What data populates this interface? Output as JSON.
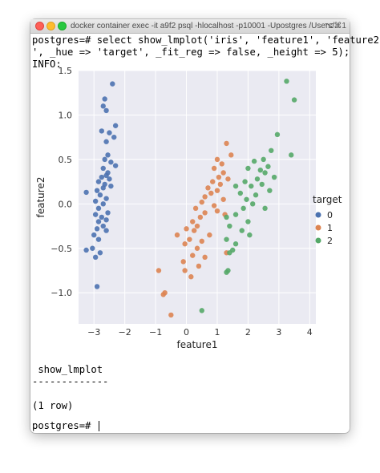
{
  "window": {
    "title": "docker container exec -it a9f2 psql -hlocalhost -p10001 -Upostgres /Users/...",
    "shortcut": "⌥⌘1"
  },
  "terminal": {
    "command_line_1": "postgres=# select show_lmplot('iris', 'feature1', 'feature2",
    "command_line_2": "', _hue => 'target', _fit_reg => false, _height => 5);",
    "info_line": "INFO:",
    "result_header": " show_lmplot",
    "result_separator": "-------------",
    "blank": "",
    "row_count": "(1 row)",
    "prompt": "postgres=# "
  },
  "colors": {
    "axes_background": "#eaeaf2",
    "grid": "#ffffff",
    "series0": "#4c72b0",
    "series1": "#dd8452",
    "series2": "#55a868"
  },
  "chart_data": {
    "type": "scatter",
    "xlabel": "feature1",
    "ylabel": "feature2",
    "xlim": [
      -3.5,
      4.2
    ],
    "ylim": [
      -1.35,
      1.5
    ],
    "xticks": [
      -3,
      -2,
      -1,
      0,
      1,
      2,
      3,
      4
    ],
    "yticks": [
      -1.0,
      -0.5,
      0.0,
      0.5,
      1.0,
      1.5
    ],
    "xtick_labels": [
      "−3",
      "−2",
      "−1",
      "0",
      "1",
      "2",
      "3",
      "4"
    ],
    "ytick_labels": [
      "−1.0",
      "−0.5",
      "0.0",
      "0.5",
      "1.0",
      "1.5"
    ],
    "grid": true,
    "legend": {
      "title": "target",
      "placement": "right",
      "labels": [
        "0",
        "1",
        "2"
      ]
    },
    "series": [
      {
        "name": "0",
        "points": [
          [
            -2.4,
            1.35
          ],
          [
            -2.65,
            1.18
          ],
          [
            -2.7,
            1.1
          ],
          [
            -2.6,
            1.05
          ],
          [
            -2.3,
            0.88
          ],
          [
            -2.75,
            0.82
          ],
          [
            -2.5,
            0.8
          ],
          [
            -2.35,
            0.75
          ],
          [
            -2.6,
            0.7
          ],
          [
            -2.55,
            0.55
          ],
          [
            -2.65,
            0.5
          ],
          [
            -2.45,
            0.47
          ],
          [
            -2.3,
            0.43
          ],
          [
            -2.7,
            0.4
          ],
          [
            -2.55,
            0.35
          ],
          [
            -2.6,
            0.32
          ],
          [
            -2.75,
            0.3
          ],
          [
            -2.5,
            0.28
          ],
          [
            -2.85,
            0.25
          ],
          [
            -2.65,
            0.22
          ],
          [
            -2.45,
            0.2
          ],
          [
            -2.7,
            0.18
          ],
          [
            -2.9,
            0.15
          ],
          [
            -3.25,
            0.13
          ],
          [
            -2.8,
            0.1
          ],
          [
            -2.6,
            0.06
          ],
          [
            -2.95,
            0.03
          ],
          [
            -2.7,
            0.0
          ],
          [
            -2.85,
            -0.05
          ],
          [
            -2.55,
            -0.1
          ],
          [
            -2.95,
            -0.12
          ],
          [
            -2.75,
            -0.15
          ],
          [
            -2.6,
            -0.18
          ],
          [
            -2.85,
            -0.2
          ],
          [
            -2.7,
            -0.25
          ],
          [
            -2.9,
            -0.28
          ],
          [
            -2.6,
            -0.3
          ],
          [
            -3.0,
            -0.35
          ],
          [
            -2.85,
            -0.4
          ],
          [
            -3.05,
            -0.5
          ],
          [
            -3.25,
            -0.52
          ],
          [
            -2.8,
            -0.55
          ],
          [
            -2.95,
            -0.6
          ],
          [
            -2.9,
            -0.93
          ]
        ]
      },
      {
        "name": "1",
        "points": [
          [
            1.3,
            0.68
          ],
          [
            1.45,
            0.55
          ],
          [
            1.0,
            0.5
          ],
          [
            1.15,
            0.45
          ],
          [
            0.9,
            0.4
          ],
          [
            1.2,
            0.35
          ],
          [
            1.05,
            0.3
          ],
          [
            1.35,
            0.28
          ],
          [
            0.85,
            0.25
          ],
          [
            1.1,
            0.22
          ],
          [
            0.7,
            0.18
          ],
          [
            1.0,
            0.15
          ],
          [
            0.8,
            0.12
          ],
          [
            0.6,
            0.08
          ],
          [
            1.2,
            0.05
          ],
          [
            0.5,
            0.02
          ],
          [
            0.9,
            -0.02
          ],
          [
            0.3,
            -0.05
          ],
          [
            1.0,
            -0.08
          ],
          [
            0.6,
            -0.1
          ],
          [
            1.25,
            -0.12
          ],
          [
            0.45,
            -0.15
          ],
          [
            0.2,
            -0.2
          ],
          [
            0.35,
            -0.25
          ],
          [
            0.0,
            -0.28
          ],
          [
            0.25,
            -0.3
          ],
          [
            -0.3,
            -0.35
          ],
          [
            0.75,
            -0.35
          ],
          [
            0.1,
            -0.4
          ],
          [
            0.5,
            -0.42
          ],
          [
            -0.05,
            -0.45
          ],
          [
            0.35,
            -0.5
          ],
          [
            1.3,
            -0.55
          ],
          [
            0.2,
            -0.58
          ],
          [
            0.6,
            -0.6
          ],
          [
            -0.1,
            -0.65
          ],
          [
            0.4,
            -0.7
          ],
          [
            -0.05,
            -0.75
          ],
          [
            -0.9,
            -0.75
          ],
          [
            0.15,
            -0.82
          ],
          [
            -0.7,
            -1.0
          ],
          [
            -0.75,
            -1.02
          ],
          [
            -0.5,
            -1.25
          ]
        ]
      },
      {
        "name": "2",
        "points": [
          [
            3.25,
            1.38
          ],
          [
            3.5,
            1.17
          ],
          [
            2.95,
            0.78
          ],
          [
            3.4,
            0.55
          ],
          [
            2.75,
            0.6
          ],
          [
            2.5,
            0.5
          ],
          [
            2.2,
            0.48
          ],
          [
            2.65,
            0.42
          ],
          [
            2.4,
            0.38
          ],
          [
            2.55,
            0.35
          ],
          [
            2.0,
            0.4
          ],
          [
            2.85,
            0.3
          ],
          [
            2.3,
            0.28
          ],
          [
            1.9,
            0.25
          ],
          [
            2.45,
            0.22
          ],
          [
            2.1,
            0.2
          ],
          [
            1.6,
            0.2
          ],
          [
            2.7,
            0.15
          ],
          [
            1.75,
            0.12
          ],
          [
            2.25,
            0.1
          ],
          [
            1.95,
            0.05
          ],
          [
            2.15,
            0.0
          ],
          [
            1.85,
            -0.05
          ],
          [
            2.55,
            -0.05
          ],
          [
            1.3,
            -0.15
          ],
          [
            1.6,
            -0.12
          ],
          [
            2.0,
            -0.2
          ],
          [
            1.4,
            -0.25
          ],
          [
            1.8,
            -0.3
          ],
          [
            2.05,
            -0.35
          ],
          [
            1.3,
            -0.4
          ],
          [
            1.6,
            -0.45
          ],
          [
            1.5,
            -0.52
          ],
          [
            1.4,
            -0.55
          ],
          [
            1.35,
            -0.75
          ],
          [
            1.3,
            -0.77
          ],
          [
            0.5,
            -1.2
          ]
        ]
      }
    ]
  }
}
